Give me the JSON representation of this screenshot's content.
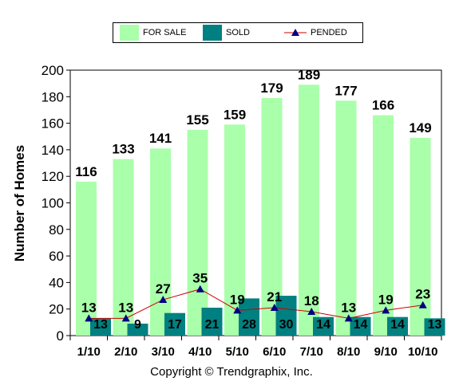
{
  "chart_data": {
    "type": "bar",
    "categories": [
      "1/10",
      "2/10",
      "3/10",
      "4/10",
      "5/10",
      "6/10",
      "7/10",
      "8/10",
      "9/10",
      "10/10"
    ],
    "series": [
      {
        "name": "FOR SALE",
        "type": "bar",
        "color": "#aaffaa",
        "values": [
          116,
          133,
          141,
          155,
          159,
          179,
          189,
          177,
          166,
          149
        ]
      },
      {
        "name": "SOLD",
        "type": "bar",
        "color": "#008080",
        "values": [
          13,
          9,
          17,
          21,
          28,
          30,
          14,
          14,
          14,
          13
        ]
      },
      {
        "name": "PENDED",
        "type": "line",
        "color": "#cc0000",
        "marker_color": "#000080",
        "values": [
          13,
          13,
          27,
          35,
          19,
          21,
          18,
          13,
          19,
          23
        ]
      }
    ],
    "ylabel": "Number of Homes",
    "yticks": [
      0,
      20,
      40,
      60,
      80,
      100,
      120,
      140,
      160,
      180,
      200
    ],
    "ylim": [
      0,
      200
    ],
    "legend_position": "top",
    "grid": false
  },
  "footer": {
    "copyright": "Copyright © Trendgraphix, Inc."
  }
}
